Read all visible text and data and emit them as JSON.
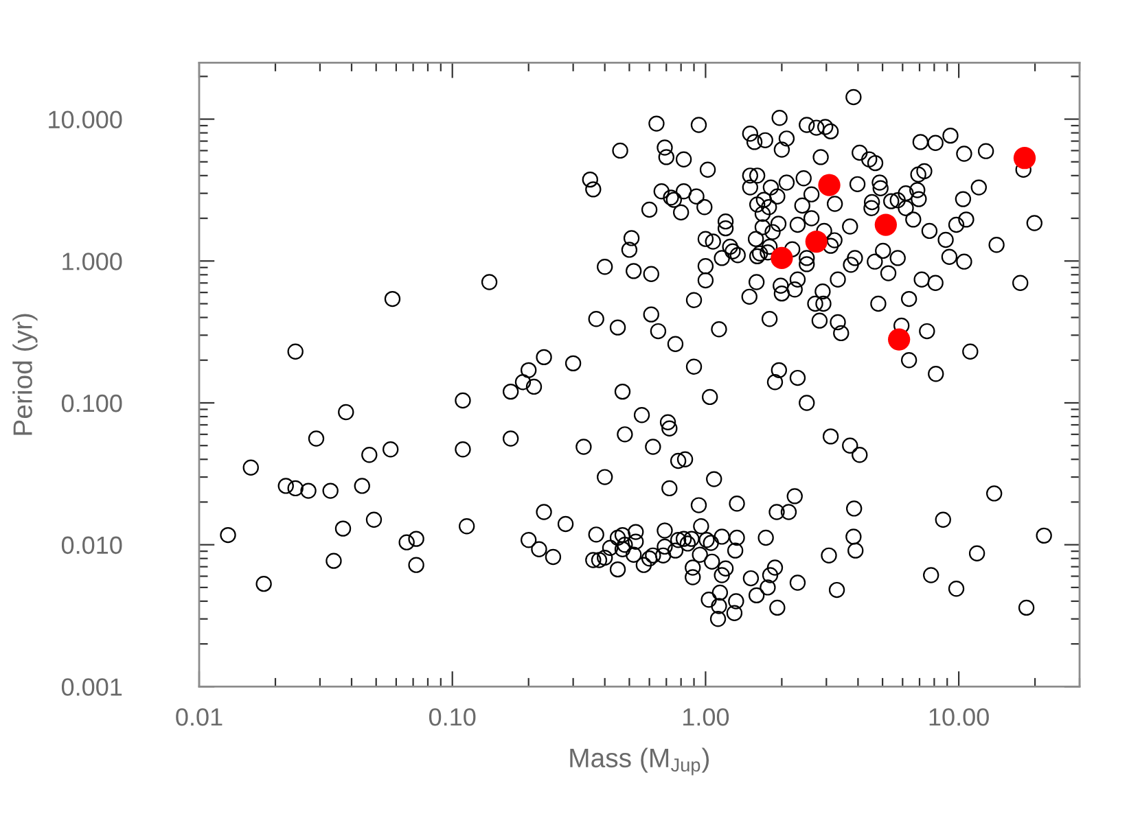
{
  "chart_data": {
    "type": "scatter",
    "xlabel": "Mass (M$_{Jup}$)",
    "ylabel": "Period (yr)",
    "log": "xy",
    "marker": "circle",
    "xlim": [
      0.01,
      30
    ],
    "ylim": [
      0.001,
      25
    ],
    "xticks": [
      0.01,
      {
        "value": 0.1,
        "label": "0.10"
      },
      {
        "value": 1,
        "label": "1.00"
      },
      {
        "value": 10,
        "label": "10.00"
      }
    ],
    "yticks": [
      0.001,
      {
        "value": 0.01,
        "label": "0.010"
      },
      {
        "value": 0.1,
        "label": "0.100"
      },
      {
        "value": 1,
        "label": "1.000"
      },
      {
        "value": 10,
        "label": "10.000"
      }
    ],
    "series": [
      {
        "color": "#000000",
        "x": [
          0.024,
          0.058,
          0.14,
          0.11,
          0.038,
          0.029,
          0.057,
          0.11,
          0.047,
          0.016,
          0.022,
          0.024,
          0.027,
          0.033,
          0.044,
          0.049,
          0.037,
          0.114,
          0.013,
          0.072,
          0.066,
          0.034,
          0.072,
          0.018,
          0.64,
          0.94,
          0.46,
          0.69,
          0.7,
          0.82,
          1.02,
          0.35,
          0.36,
          0.67,
          0.73,
          0.75,
          0.82,
          0.92,
          0.99,
          0.6,
          0.8,
          1.2,
          1.2,
          0.51,
          0.5,
          1.0,
          1.07,
          1.25,
          1.28,
          1.16,
          1.34,
          0.4,
          0.52,
          0.61,
          1.0,
          1.0,
          0.9,
          0.37,
          0.45,
          0.61,
          0.65,
          0.76,
          1.13,
          0.23,
          0.3,
          0.2,
          0.9,
          1.5,
          1.56,
          1.72,
          1.96,
          2.0,
          1.5,
          1.6,
          1.5,
          1.81,
          1.92,
          1.7,
          1.6,
          1.78,
          1.68,
          1.94,
          1.68,
          1.84,
          1.58,
          1.79,
          1.64,
          1.6,
          1.76,
          1.59,
          1.49,
          1.98,
          2.0,
          1.79,
          1.95,
          2.09,
          3.84,
          2.51,
          2.74,
          2.97,
          3.12,
          2.09,
          2.85,
          4.06,
          4.43,
          4.68,
          7.06,
          8.09,
          9.27,
          10.5,
          12.8,
          18.0,
          2.44,
          2.62,
          2.41,
          3.24,
          2.62,
          2.31,
          3.98,
          4.87,
          4.91,
          4.54,
          4.52,
          5.41,
          5.74,
          6.18,
          6.18,
          6.86,
          6.95,
          6.92,
          7.31,
          6.61,
          3.72,
          7.66,
          10.4,
          12.0,
          10.7,
          9.78,
          8.88,
          19.9,
          14.1,
          9.18,
          10.5,
          2.94,
          3.23,
          3.12,
          2.2,
          2.51,
          2.51,
          3.89,
          3.75,
          4.66,
          5.02,
          5.74,
          5.27,
          3.33,
          2.31,
          2.25,
          2.9,
          2.71,
          2.92,
          4.81,
          6.36,
          7.14,
          8.09,
          17.5,
          2.82,
          3.33,
          3.43,
          5.94,
          7.49,
          11.1,
          6.36,
          8.12,
          2.31,
          2.51,
          3.12,
          3.72,
          4.06,
          2.25,
          2.13,
          3.86,
          3.84,
          3.91,
          3.07,
          2.31,
          3.3,
          13.8,
          8.67,
          21.7,
          11.8,
          7.77,
          9.78,
          18.5,
          0.19,
          0.17,
          0.21,
          0.47,
          1.04,
          1.88,
          0.56,
          0.71,
          0.72,
          0.48,
          0.17,
          0.33,
          0.62,
          0.78,
          0.83,
          0.4,
          1.08,
          0.72,
          0.23,
          0.28,
          0.94,
          1.33,
          1.91,
          0.2,
          0.22,
          0.25,
          0.37,
          0.36,
          0.38,
          0.4,
          0.42,
          0.45,
          0.45,
          0.47,
          0.53,
          0.48,
          0.47,
          0.53,
          0.52,
          0.57,
          0.6,
          0.62,
          0.68,
          0.69,
          0.69,
          0.78,
          0.76,
          0.82,
          0.85,
          0.88,
          0.96,
          0.95,
          1.01,
          1.05,
          1.06,
          1.16,
          1.33,
          1.31,
          0.89,
          0.89,
          1.2,
          1.16,
          1.14,
          1.03,
          1.13,
          1.12,
          1.32,
          1.3,
          1.51,
          1.73,
          1.88,
          1.8,
          1.76,
          1.59,
          1.92
        ],
        "values": [
          0.23,
          0.54,
          0.71,
          0.104,
          0.086,
          0.056,
          0.047,
          0.047,
          0.043,
          0.035,
          0.026,
          0.025,
          0.024,
          0.024,
          0.026,
          0.015,
          0.013,
          0.0135,
          0.0117,
          0.011,
          0.0104,
          0.0077,
          0.0072,
          0.0053,
          9.3,
          9.1,
          6.0,
          6.3,
          5.4,
          5.2,
          4.4,
          3.75,
          3.2,
          3.1,
          2.8,
          2.7,
          3.1,
          2.85,
          2.4,
          2.3,
          2.2,
          1.9,
          1.7,
          1.45,
          1.2,
          1.43,
          1.37,
          1.26,
          1.17,
          1.05,
          1.1,
          0.91,
          0.85,
          0.81,
          0.92,
          0.73,
          0.53,
          0.39,
          0.34,
          0.42,
          0.32,
          0.26,
          0.33,
          0.21,
          0.19,
          0.17,
          0.18,
          7.9,
          6.9,
          7.1,
          10.2,
          6.1,
          4.0,
          4.0,
          3.3,
          3.3,
          2.85,
          2.7,
          2.5,
          2.4,
          2.15,
          1.83,
          1.73,
          1.6,
          1.43,
          1.26,
          1.13,
          1.08,
          1.15,
          0.71,
          0.56,
          0.67,
          0.59,
          0.39,
          0.17,
          3.57,
          14.3,
          9.1,
          8.7,
          8.8,
          8.2,
          7.3,
          5.4,
          5.8,
          5.2,
          4.9,
          6.9,
          6.8,
          7.65,
          5.7,
          5.95,
          4.4,
          3.83,
          2.95,
          2.46,
          2.53,
          2.0,
          1.8,
          3.48,
          3.57,
          3.26,
          2.6,
          2.36,
          2.64,
          2.68,
          3.0,
          2.36,
          3.16,
          2.73,
          4.07,
          4.29,
          1.96,
          1.75,
          1.63,
          2.73,
          3.3,
          1.96,
          1.8,
          1.41,
          1.85,
          1.3,
          1.07,
          0.99,
          1.63,
          1.4,
          1.28,
          1.21,
          1.05,
          0.95,
          1.05,
          0.94,
          0.99,
          1.18,
          1.05,
          0.82,
          0.74,
          0.74,
          0.63,
          0.61,
          0.5,
          0.5,
          0.5,
          0.54,
          0.74,
          0.7,
          0.7,
          0.38,
          0.37,
          0.31,
          0.35,
          0.32,
          0.23,
          0.2,
          0.16,
          0.15,
          0.1,
          0.058,
          0.05,
          0.043,
          0.022,
          0.017,
          0.018,
          0.0114,
          0.0091,
          0.0084,
          0.0054,
          0.0048,
          0.023,
          0.015,
          0.0116,
          0.0087,
          0.0061,
          0.0049,
          0.0036,
          0.14,
          0.12,
          0.13,
          0.12,
          0.11,
          0.14,
          0.082,
          0.073,
          0.066,
          0.06,
          0.056,
          0.049,
          0.049,
          0.039,
          0.04,
          0.03,
          0.029,
          0.025,
          0.017,
          0.014,
          0.019,
          0.0195,
          0.017,
          0.0108,
          0.0093,
          0.0082,
          0.0118,
          0.0078,
          0.0078,
          0.0081,
          0.0095,
          0.0067,
          0.0112,
          0.0117,
          0.0123,
          0.01,
          0.0093,
          0.0105,
          0.0085,
          0.0072,
          0.008,
          0.0084,
          0.0084,
          0.0126,
          0.0097,
          0.0108,
          0.0091,
          0.011,
          0.0102,
          0.011,
          0.0135,
          0.0085,
          0.0108,
          0.0103,
          0.0076,
          0.0114,
          0.0112,
          0.0091,
          0.0069,
          0.0059,
          0.0068,
          0.0061,
          0.0046,
          0.0041,
          0.0037,
          0.003,
          0.004,
          0.0033,
          0.0058,
          0.0112,
          0.0069,
          0.0061,
          0.005,
          0.0044,
          0.0036
        ]
      },
      {
        "color": "#ff0000",
        "x": [
          2.0,
          3.08,
          2.74,
          5.15,
          5.81,
          18.2
        ],
        "values": [
          1.05,
          3.43,
          1.37,
          1.8,
          0.28,
          5.32
        ]
      }
    ]
  }
}
